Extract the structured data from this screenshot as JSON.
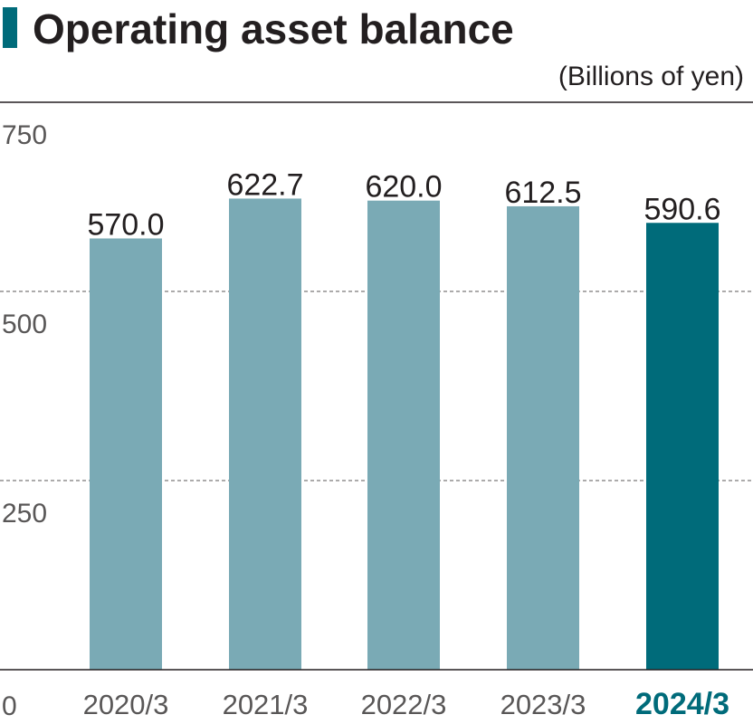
{
  "chart_data": {
    "type": "bar",
    "title": "Operating asset balance",
    "unit_label": "(Billions of yen)",
    "categories": [
      "2020/3",
      "2021/3",
      "2022/3",
      "2023/3",
      "2024/3"
    ],
    "values": [
      570.0,
      622.7,
      620.0,
      612.5,
      590.6
    ],
    "value_labels": [
      "570.0",
      "622.7",
      "620.0",
      "612.5",
      "590.6"
    ],
    "highlight_index": 4,
    "ylim": [
      0,
      750
    ],
    "yticks": [
      0,
      250,
      500,
      750
    ],
    "ytick_labels": [
      "0",
      "250",
      "500",
      "750"
    ],
    "grid": "dashed horizontal at 250 and 500",
    "colors": {
      "accent": "#006b7a",
      "bar": "#7aaab5",
      "bar_highlight": "#006b7a",
      "text": "#231f20",
      "axis_text": "#595757",
      "grid": "#595757"
    }
  }
}
